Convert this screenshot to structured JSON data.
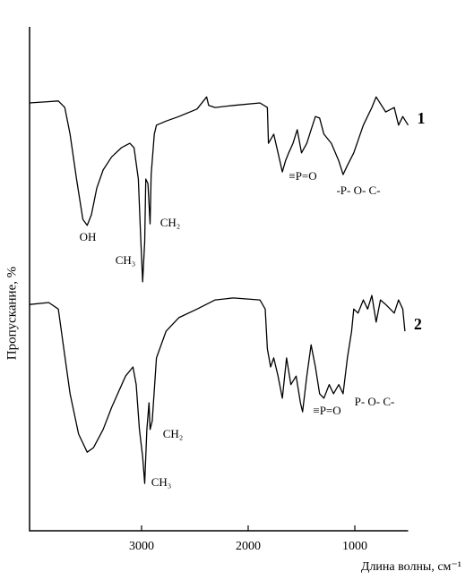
{
  "chart_data": {
    "type": "line",
    "xlabel": "Длина волны, см⁻¹",
    "ylabel": "Пропускание, %",
    "xlim": [
      4050,
      500
    ],
    "ylim": [
      0,
      100
    ],
    "xticks": [
      3000,
      2000,
      1000
    ],
    "series": [
      {
        "name": "1",
        "color": "#000000",
        "x": [
          4050,
          3910,
          3780,
          3720,
          3670,
          3610,
          3550,
          3510,
          3470,
          3420,
          3360,
          3280,
          3190,
          3110,
          3070,
          3030,
          3010,
          2990,
          2970,
          2960,
          2940,
          2920,
          2910,
          2880,
          2860,
          2770,
          2650,
          2480,
          2390,
          2370,
          2310,
          2140,
          1890,
          1820,
          1810,
          1760,
          1720,
          1680,
          1650,
          1620,
          1580,
          1540,
          1500,
          1450,
          1410,
          1370,
          1330,
          1290,
          1220,
          1150,
          1110,
          1070,
          1010,
          920,
          840,
          800,
          710,
          630,
          590,
          550,
          500
        ],
        "values": [
          84.9,
          85.1,
          85.3,
          84.0,
          78.7,
          69.8,
          61.8,
          60.6,
          62.7,
          68.0,
          71.6,
          74.2,
          76.0,
          76.9,
          76.0,
          69.8,
          59.1,
          49.4,
          57.4,
          69.8,
          68.9,
          60.9,
          70.7,
          78.7,
          80.5,
          81.3,
          82.2,
          83.7,
          86.1,
          84.4,
          84.0,
          84.4,
          84.9,
          84.0,
          76.9,
          78.7,
          75.0,
          71.2,
          73.4,
          75.0,
          76.9,
          79.6,
          75.0,
          76.9,
          79.6,
          82.2,
          81.9,
          78.7,
          76.9,
          73.4,
          70.7,
          72.5,
          75.0,
          80.5,
          84.0,
          86.1,
          83.1,
          84.0,
          80.5,
          82.2,
          80.5
        ]
      },
      {
        "name": "2",
        "color": "#000000",
        "x": [
          4050,
          3870,
          3780,
          3740,
          3670,
          3590,
          3510,
          3450,
          3360,
          3280,
          3150,
          3080,
          3050,
          3020,
          2990,
          2970,
          2950,
          2930,
          2920,
          2900,
          2860,
          2770,
          2650,
          2480,
          2310,
          2140,
          1890,
          1840,
          1820,
          1790,
          1760,
          1720,
          1680,
          1640,
          1600,
          1550,
          1510,
          1490,
          1450,
          1410,
          1370,
          1330,
          1290,
          1240,
          1200,
          1150,
          1110,
          1070,
          1030,
          1010,
          970,
          920,
          880,
          840,
          800,
          760,
          710,
          630,
          590,
          550,
          530
        ],
        "values": [
          44.9,
          45.3,
          44.0,
          37.8,
          27.2,
          19.2,
          15.6,
          16.5,
          20.1,
          24.5,
          30.7,
          32.5,
          29.0,
          20.1,
          14.7,
          9.4,
          20.1,
          25.4,
          20.1,
          21.8,
          34.3,
          39.6,
          42.3,
          44.0,
          45.8,
          46.2,
          45.8,
          44.0,
          36.1,
          32.5,
          34.3,
          30.7,
          26.3,
          34.3,
          29.0,
          30.7,
          25.4,
          23.6,
          30.7,
          36.9,
          32.5,
          27.2,
          26.3,
          29.0,
          27.2,
          29.0,
          27.2,
          34.3,
          39.6,
          44.0,
          43.2,
          45.8,
          44.0,
          46.7,
          41.4,
          45.8,
          44.9,
          43.2,
          45.8,
          44.0,
          39.6
        ]
      }
    ],
    "annotations": [
      "OH",
      "CH₃",
      "CH₂",
      "≡P=O",
      "-P- O- C-",
      "≡P=O",
      "P- O- C-",
      "CH₂",
      "CH₃"
    ]
  }
}
